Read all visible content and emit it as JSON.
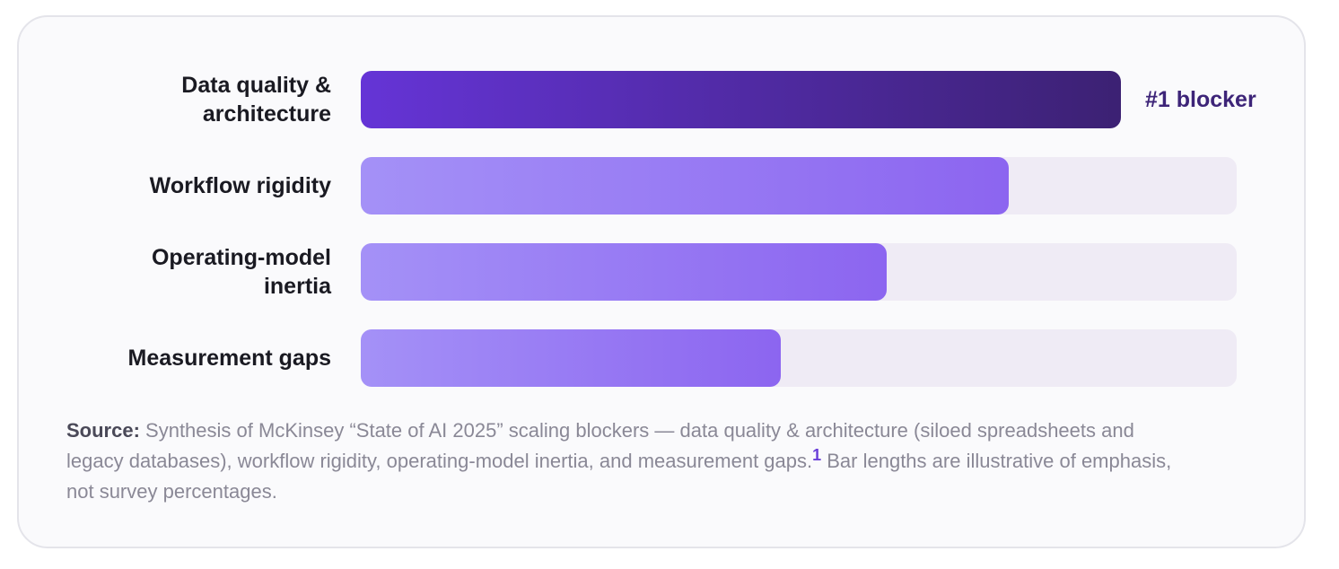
{
  "chart_data": {
    "type": "bar",
    "orientation": "horizontal",
    "categories": [
      "Data quality & architecture",
      "Workflow rigidity",
      "Operating-model inertia",
      "Measurement gaps"
    ],
    "values": [
      0.868,
      0.74,
      0.6,
      0.48
    ],
    "annotations": [
      {
        "category": "Data quality & architecture",
        "text": "#1 blocker"
      }
    ],
    "xlim": [
      0,
      1
    ],
    "title": "",
    "xlabel": "",
    "ylabel": "",
    "grid": false,
    "legend": "none",
    "colors": {
      "primary_start": "#6534d6",
      "primary_end": "#3c2173",
      "secondary_start": "#a491f7",
      "secondary_end": "#8c65f0",
      "track": "#efebf5",
      "annotation": "#3d2478"
    }
  },
  "footnote": {
    "label": "Source:",
    "text_before": " Synthesis of McKinsey “State of AI 2025” scaling blockers — data quality & architecture (siloed spreadsheets and legacy databases), workflow rigidity, operating-model inertia, and measurement gaps.",
    "reference": "1",
    "text_after": " Bar lengths are illustrative of emphasis, not survey percentages."
  }
}
